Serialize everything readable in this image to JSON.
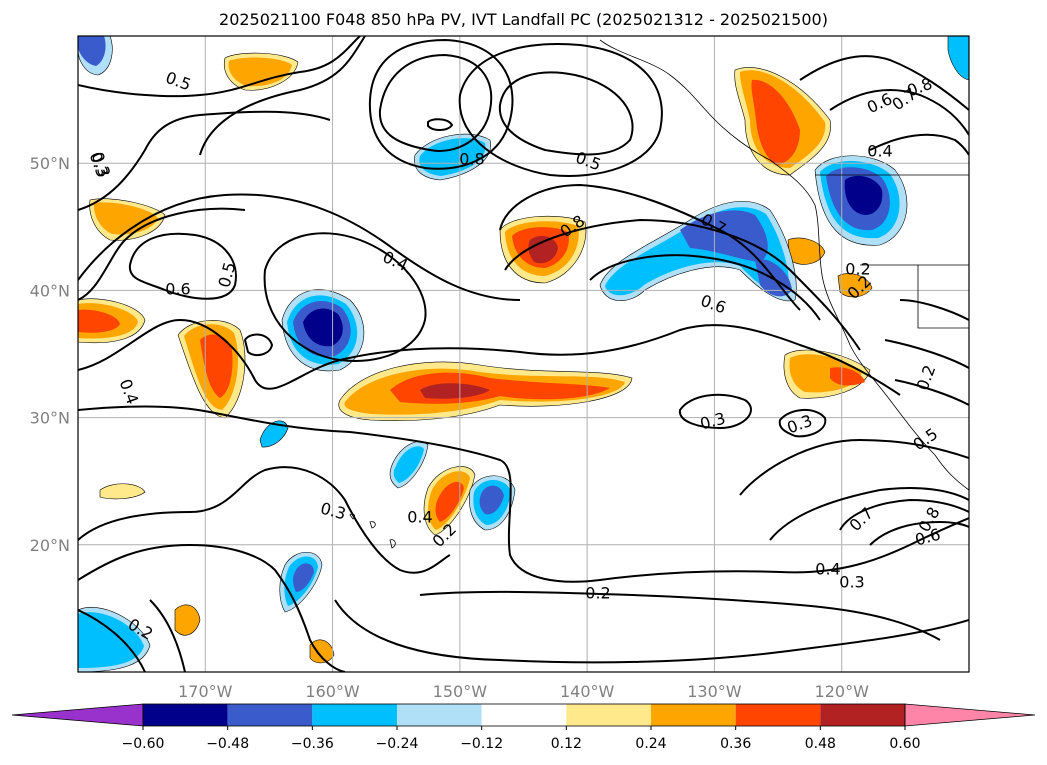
{
  "chart_data": {
    "type": "contour-map",
    "title": "2025021100 F048 850 hPa PV, IVT Landfall PC (2025021312 - 2025021500)",
    "x_axis": {
      "labels": [
        "170°W",
        "160°W",
        "150°W",
        "140°W",
        "130°W",
        "120°W"
      ],
      "values": [
        -170,
        -160,
        -150,
        -140,
        -130,
        -120
      ],
      "range": [
        -180,
        -110
      ]
    },
    "y_axis": {
      "labels": [
        "20°N",
        "30°N",
        "40°N",
        "50°N"
      ],
      "values": [
        20,
        30,
        40,
        50
      ],
      "range": [
        10,
        60
      ]
    },
    "grid": true,
    "colorbar": {
      "orientation": "horizontal",
      "extend": "both",
      "tick_labels": [
        "−0.60",
        "−0.48",
        "−0.36",
        "−0.24",
        "−0.12",
        "0.12",
        "0.24",
        "0.36",
        "0.48",
        "0.60"
      ],
      "tick_values": [
        -0.6,
        -0.48,
        -0.36,
        -0.24,
        -0.12,
        0.12,
        0.24,
        0.36,
        0.48,
        0.6
      ],
      "colors": [
        "#9932cc",
        "#00008b",
        "#3a5bcc",
        "#00bfff",
        "#b0e0f8",
        "#ffffff",
        "#ffe98a",
        "#ffa500",
        "#ff4500",
        "#b22222",
        "#ff85a8"
      ]
    },
    "contour_labels": [
      "0.5",
      "0.3",
      "0.6",
      "0.5",
      "0.4",
      "0.8",
      "0.5",
      "0.8",
      "0.7",
      "0.6",
      "0.4",
      "0.8",
      "0.7",
      "0.6",
      "0.4",
      "0.3",
      "0.4",
      "0.3",
      "0.3",
      "0.2",
      "0.2",
      "0.4",
      "0.3",
      "0.2",
      "0.2",
      "0.2",
      "0.7",
      "0.8",
      "0.6",
      "0.5",
      "0.2",
      "0.3"
    ]
  }
}
